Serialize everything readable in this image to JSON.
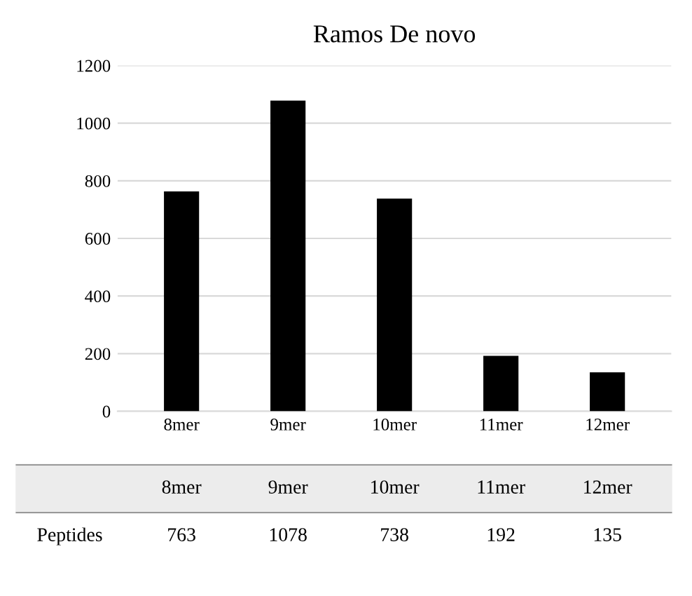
{
  "chart_data": {
    "type": "bar",
    "title": "Ramos De novo",
    "categories": [
      "8mer",
      "9mer",
      "10mer",
      "11mer",
      "12mer"
    ],
    "series": [
      {
        "name": "Peptides",
        "color": "#000000",
        "values": [
          763,
          1078,
          738,
          192,
          135
        ]
      }
    ],
    "ylim": [
      0,
      1200
    ],
    "yticks": [
      0,
      200,
      400,
      600,
      800,
      1000,
      1200
    ],
    "grid": "y",
    "data_labels": true
  }
}
